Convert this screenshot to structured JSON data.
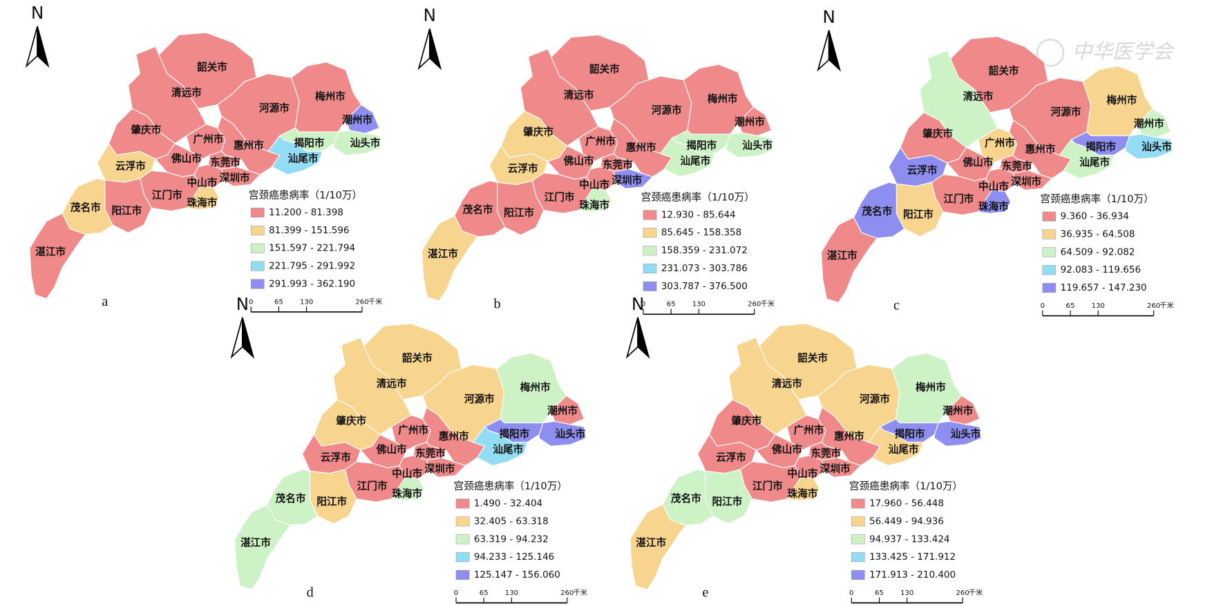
{
  "watermark": "中华医学会",
  "panels": [
    {
      "label": "a",
      "north": "N",
      "legend": {
        "title": "宫颈癌患病率（1/10万）",
        "items": [
          {
            "label": "11.200 - 81.398",
            "color": "#f08a8a"
          },
          {
            "label": "81.399 - 151.596",
            "color": "#f8d58e"
          },
          {
            "label": "151.597 - 221.794",
            "color": "#cdf2c6"
          },
          {
            "label": "221.795 - 291.992",
            "color": "#92dcf4"
          },
          {
            "label": "291.993 - 362.190",
            "color": "#8e8ef0"
          }
        ]
      },
      "scale": {
        "ticks": [
          0,
          65,
          130,
          260
        ],
        "unit": "千米"
      },
      "cities": [
        {
          "name": "韶关市",
          "class": 0
        },
        {
          "name": "清远市",
          "class": 0
        },
        {
          "name": "河源市",
          "class": 0
        },
        {
          "name": "梅州市",
          "class": 0
        },
        {
          "name": "潮州市",
          "class": 4
        },
        {
          "name": "肇庆市",
          "class": 0
        },
        {
          "name": "广州市",
          "class": 0
        },
        {
          "name": "惠州市",
          "class": 0
        },
        {
          "name": "揭阳市",
          "class": 2
        },
        {
          "name": "汕头市",
          "class": 2
        },
        {
          "name": "汕尾市",
          "class": 3
        },
        {
          "name": "云浮市",
          "class": 1
        },
        {
          "name": "佛山市",
          "class": 0
        },
        {
          "name": "东莞市",
          "class": 0
        },
        {
          "name": "深圳市",
          "class": 0
        },
        {
          "name": "中山市",
          "class": 0
        },
        {
          "name": "江门市",
          "class": 0
        },
        {
          "name": "珠海市",
          "class": 1
        },
        {
          "name": "茂名市",
          "class": 1
        },
        {
          "name": "阳江市",
          "class": 0
        },
        {
          "name": "湛江市",
          "class": 0
        }
      ]
    },
    {
      "label": "b",
      "north": "N",
      "legend": {
        "title": "宫颈癌患病率（1/10万）",
        "items": [
          {
            "label": "12.930 - 85.644",
            "color": "#f08a8a"
          },
          {
            "label": "85.645 - 158.358",
            "color": "#f8d58e"
          },
          {
            "label": "158.359 - 231.072",
            "color": "#cdf2c6"
          },
          {
            "label": "231.073 - 303.786",
            "color": "#92dcf4"
          },
          {
            "label": "303.787 - 376.500",
            "color": "#8e8ef0"
          }
        ]
      },
      "scale": {
        "ticks": [
          0,
          65,
          130,
          260
        ],
        "unit": "千米"
      },
      "cities": [
        {
          "name": "韶关市",
          "class": 0
        },
        {
          "name": "清远市",
          "class": 0
        },
        {
          "name": "河源市",
          "class": 0
        },
        {
          "name": "梅州市",
          "class": 0
        },
        {
          "name": "潮州市",
          "class": 0
        },
        {
          "name": "肇庆市",
          "class": 1
        },
        {
          "name": "广州市",
          "class": 0
        },
        {
          "name": "惠州市",
          "class": 0
        },
        {
          "name": "揭阳市",
          "class": 2
        },
        {
          "name": "汕头市",
          "class": 2
        },
        {
          "name": "汕尾市",
          "class": 2
        },
        {
          "name": "云浮市",
          "class": 1
        },
        {
          "name": "佛山市",
          "class": 0
        },
        {
          "name": "东莞市",
          "class": 0
        },
        {
          "name": "深圳市",
          "class": 4
        },
        {
          "name": "中山市",
          "class": 0
        },
        {
          "name": "江门市",
          "class": 0
        },
        {
          "name": "珠海市",
          "class": 2
        },
        {
          "name": "茂名市",
          "class": 0
        },
        {
          "name": "阳江市",
          "class": 0
        },
        {
          "name": "湛江市",
          "class": 1
        }
      ]
    },
    {
      "label": "c",
      "north": "N",
      "legend": {
        "title": "宫颈癌患病率（1/10万）",
        "items": [
          {
            "label": "9.360 - 36.934",
            "color": "#f08a8a"
          },
          {
            "label": "36.935 - 64.508",
            "color": "#f8d58e"
          },
          {
            "label": "64.509 - 92.082",
            "color": "#cdf2c6"
          },
          {
            "label": "92.083 - 119.656",
            "color": "#92dcf4"
          },
          {
            "label": "119.657 - 147.230",
            "color": "#8e8ef0"
          }
        ]
      },
      "scale": {
        "ticks": [
          0,
          65,
          130,
          260
        ],
        "unit": "千米"
      },
      "cities": [
        {
          "name": "韶关市",
          "class": 0
        },
        {
          "name": "清远市",
          "class": 2
        },
        {
          "name": "河源市",
          "class": 0
        },
        {
          "name": "梅州市",
          "class": 1
        },
        {
          "name": "潮州市",
          "class": 2
        },
        {
          "name": "肇庆市",
          "class": 0
        },
        {
          "name": "广州市",
          "class": 1
        },
        {
          "name": "惠州市",
          "class": 0
        },
        {
          "name": "揭阳市",
          "class": 4
        },
        {
          "name": "汕头市",
          "class": 3
        },
        {
          "name": "汕尾市",
          "class": 2
        },
        {
          "name": "云浮市",
          "class": 4
        },
        {
          "name": "佛山市",
          "class": 0
        },
        {
          "name": "东莞市",
          "class": 0
        },
        {
          "name": "深圳市",
          "class": 0
        },
        {
          "name": "中山市",
          "class": 0
        },
        {
          "name": "江门市",
          "class": 0
        },
        {
          "name": "珠海市",
          "class": 4
        },
        {
          "name": "茂名市",
          "class": 4
        },
        {
          "name": "阳江市",
          "class": 1
        },
        {
          "name": "湛江市",
          "class": 0
        }
      ]
    },
    {
      "label": "d",
      "north": "N",
      "legend": {
        "title": "宫颈癌患病率（1/10万）",
        "items": [
          {
            "label": "1.490 - 32.404",
            "color": "#f08a8a"
          },
          {
            "label": "32.405 - 63.318",
            "color": "#f8d58e"
          },
          {
            "label": "63.319 - 94.232",
            "color": "#cdf2c6"
          },
          {
            "label": "94.233 - 125.146",
            "color": "#92dcf4"
          },
          {
            "label": "125.147 - 156.060",
            "color": "#8e8ef0"
          }
        ]
      },
      "scale": {
        "ticks": [
          0,
          65,
          130,
          260
        ],
        "unit": "千米"
      },
      "cities": [
        {
          "name": "韶关市",
          "class": 1
        },
        {
          "name": "清远市",
          "class": 1
        },
        {
          "name": "河源市",
          "class": 1
        },
        {
          "name": "梅州市",
          "class": 2
        },
        {
          "name": "潮州市",
          "class": 0
        },
        {
          "name": "肇庆市",
          "class": 1
        },
        {
          "name": "广州市",
          "class": 0
        },
        {
          "name": "惠州市",
          "class": 0
        },
        {
          "name": "揭阳市",
          "class": 4
        },
        {
          "name": "汕头市",
          "class": 4
        },
        {
          "name": "汕尾市",
          "class": 3
        },
        {
          "name": "云浮市",
          "class": 0
        },
        {
          "name": "佛山市",
          "class": 0
        },
        {
          "name": "东莞市",
          "class": 0
        },
        {
          "name": "深圳市",
          "class": 0
        },
        {
          "name": "中山市",
          "class": 0
        },
        {
          "name": "江门市",
          "class": 0
        },
        {
          "name": "珠海市",
          "class": 2
        },
        {
          "name": "茂名市",
          "class": 2
        },
        {
          "name": "阳江市",
          "class": 1
        },
        {
          "name": "湛江市",
          "class": 2
        }
      ]
    },
    {
      "label": "e",
      "north": "N",
      "legend": {
        "title": "宫颈癌患病率（1/10万）",
        "items": [
          {
            "label": "17.960 - 56.448",
            "color": "#f08a8a"
          },
          {
            "label": "56.449 - 94.936",
            "color": "#f8d58e"
          },
          {
            "label": "94.937 - 133.424",
            "color": "#cdf2c6"
          },
          {
            "label": "133.425 - 171.912",
            "color": "#92dcf4"
          },
          {
            "label": "171.913 - 210.400",
            "color": "#8e8ef0"
          }
        ]
      },
      "scale": {
        "ticks": [
          0,
          65,
          130,
          260
        ],
        "unit": "千米"
      },
      "cities": [
        {
          "name": "韶关市",
          "class": 1
        },
        {
          "name": "清远市",
          "class": 1
        },
        {
          "name": "河源市",
          "class": 1
        },
        {
          "name": "梅州市",
          "class": 2
        },
        {
          "name": "潮州市",
          "class": 0
        },
        {
          "name": "肇庆市",
          "class": 0
        },
        {
          "name": "广州市",
          "class": 0
        },
        {
          "name": "惠州市",
          "class": 0
        },
        {
          "name": "揭阳市",
          "class": 4
        },
        {
          "name": "汕头市",
          "class": 4
        },
        {
          "name": "汕尾市",
          "class": 1
        },
        {
          "name": "云浮市",
          "class": 0
        },
        {
          "name": "佛山市",
          "class": 0
        },
        {
          "name": "东莞市",
          "class": 0
        },
        {
          "name": "深圳市",
          "class": 0
        },
        {
          "name": "中山市",
          "class": 0
        },
        {
          "name": "江门市",
          "class": 0
        },
        {
          "name": "珠海市",
          "class": 1
        },
        {
          "name": "茂名市",
          "class": 2
        },
        {
          "name": "阳江市",
          "class": 2
        },
        {
          "name": "湛江市",
          "class": 1
        }
      ]
    }
  ]
}
